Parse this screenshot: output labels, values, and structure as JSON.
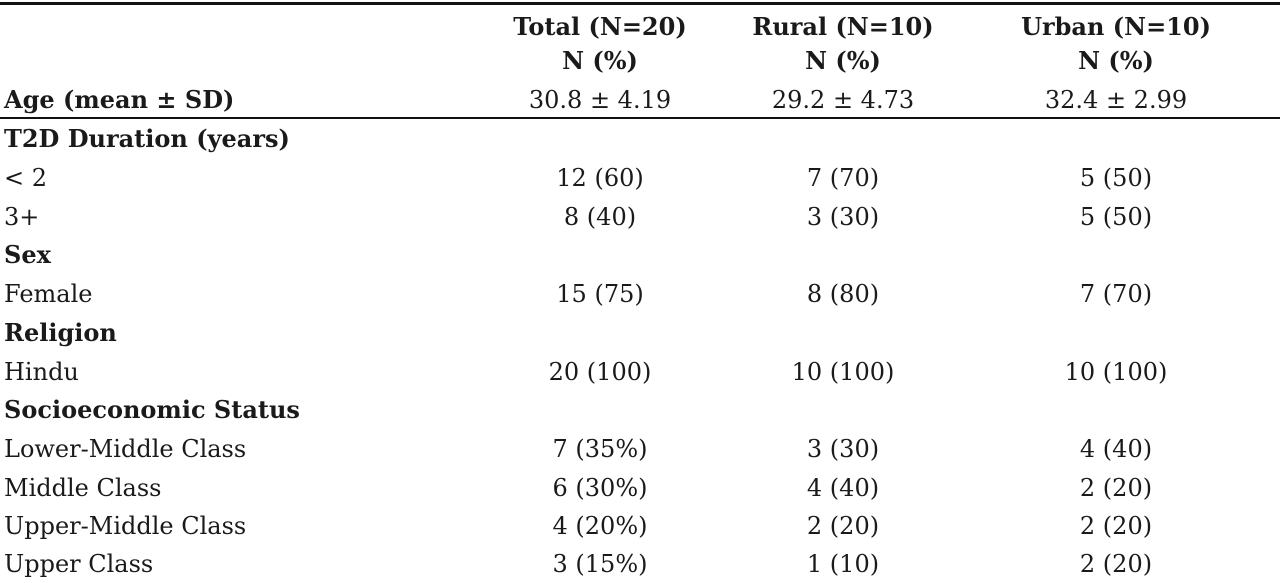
{
  "header": {
    "columns": [
      {
        "title": "Total (N=20)",
        "sub": "N (%)"
      },
      {
        "title": "Rural (N=10)",
        "sub": "N (%)"
      },
      {
        "title": "Urban (N=10)",
        "sub": "N (%)"
      }
    ]
  },
  "rows": [
    {
      "label": "Age (mean ± SD)",
      "bold": true,
      "total": "30.8 ± 4.19",
      "rural": "29.2 ± 4.73",
      "urban": "32.4 ± 2.99"
    },
    {
      "label": "T2D Duration (years)",
      "bold": true,
      "total": "",
      "rural": "",
      "urban": ""
    },
    {
      "label": "< 2",
      "bold": false,
      "total": "12 (60)",
      "rural": "7 (70)",
      "urban": "5 (50)"
    },
    {
      "label": "3+",
      "bold": false,
      "total": "8 (40)",
      "rural": "3 (30)",
      "urban": "5 (50)"
    },
    {
      "label": "Sex",
      "bold": true,
      "total": "",
      "rural": "",
      "urban": ""
    },
    {
      "label": "Female",
      "bold": false,
      "total": "15 (75)",
      "rural": "8 (80)",
      "urban": "7 (70)"
    },
    {
      "label": "Religion",
      "bold": true,
      "total": "",
      "rural": "",
      "urban": ""
    },
    {
      "label": "Hindu",
      "bold": false,
      "total": "20 (100)",
      "rural": "10 (100)",
      "urban": "10 (100)"
    },
    {
      "label": "Socioeconomic Status",
      "bold": true,
      "total": "",
      "rural": "",
      "urban": ""
    },
    {
      "label": "Lower-Middle Class",
      "bold": false,
      "total": "7 (35%)",
      "rural": "3 (30)",
      "urban": "4 (40)"
    },
    {
      "label": "Middle Class",
      "bold": false,
      "total": "6 (30%)",
      "rural": "4 (40)",
      "urban": "2 (20)"
    },
    {
      "label": "Upper-Middle Class",
      "bold": false,
      "total": "4 (20%)",
      "rural": "2 (20)",
      "urban": "2 (20)"
    },
    {
      "label": "Upper Class",
      "bold": false,
      "total": "3 (15%)",
      "rural": "1 (10)",
      "urban": "2 (20)"
    }
  ]
}
